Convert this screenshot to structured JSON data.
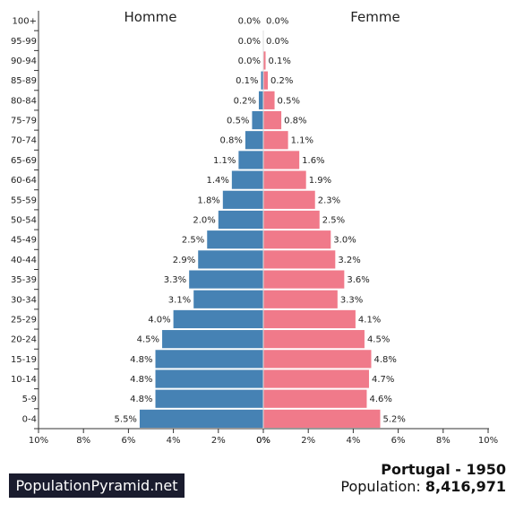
{
  "chart_data": {
    "type": "bar",
    "orientation": "horizontal-pyramid",
    "left_label": "Homme",
    "right_label": "Femme",
    "categories": [
      "100+",
      "95-99",
      "90-94",
      "85-89",
      "80-84",
      "75-79",
      "70-74",
      "65-69",
      "60-64",
      "55-59",
      "50-54",
      "45-49",
      "40-44",
      "35-39",
      "30-34",
      "25-29",
      "20-24",
      "15-19",
      "10-14",
      "5-9",
      "0-4"
    ],
    "series": [
      {
        "name": "Homme",
        "color": "#4682b4",
        "values": [
          0.0,
          0.0,
          0.0,
          0.1,
          0.2,
          0.5,
          0.8,
          1.1,
          1.4,
          1.8,
          2.0,
          2.5,
          2.9,
          3.3,
          3.1,
          4.0,
          4.5,
          4.8,
          4.8,
          4.8,
          5.5
        ],
        "labels": [
          "0.0%",
          "0.0%",
          "0.0%",
          "0.1%",
          "0.2%",
          "0.5%",
          "0.8%",
          "1.1%",
          "1.4%",
          "1.8%",
          "2.0%",
          "2.5%",
          "2.9%",
          "3.3%",
          "3.1%",
          "4.0%",
          "4.5%",
          "4.8%",
          "4.8%",
          "4.8%",
          "5.5%"
        ]
      },
      {
        "name": "Femme",
        "color": "#f07a8a",
        "values": [
          0.0,
          0.0,
          0.1,
          0.2,
          0.5,
          0.8,
          1.1,
          1.6,
          1.9,
          2.3,
          2.5,
          3.0,
          3.2,
          3.6,
          3.3,
          4.1,
          4.5,
          4.8,
          4.7,
          4.6,
          5.2
        ],
        "labels": [
          "0.0%",
          "0.0%",
          "0.1%",
          "0.2%",
          "0.5%",
          "0.8%",
          "1.1%",
          "1.6%",
          "1.9%",
          "2.3%",
          "2.5%",
          "3.0%",
          "3.2%",
          "3.6%",
          "3.3%",
          "4.1%",
          "4.5%",
          "4.8%",
          "4.7%",
          "4.6%",
          "5.2%"
        ]
      }
    ],
    "xlim": [
      0,
      10
    ],
    "xticks_left": [
      "10%",
      "8%",
      "6%",
      "4%",
      "2%",
      "0%"
    ],
    "xticks_right": [
      "0%",
      "2%",
      "4%",
      "6%",
      "8%",
      "10%"
    ]
  },
  "footer": {
    "brand": "PopulationPyramid.net",
    "title": "Portugal - 1950",
    "population_label": "Population:",
    "population_value": "8,416,971"
  }
}
